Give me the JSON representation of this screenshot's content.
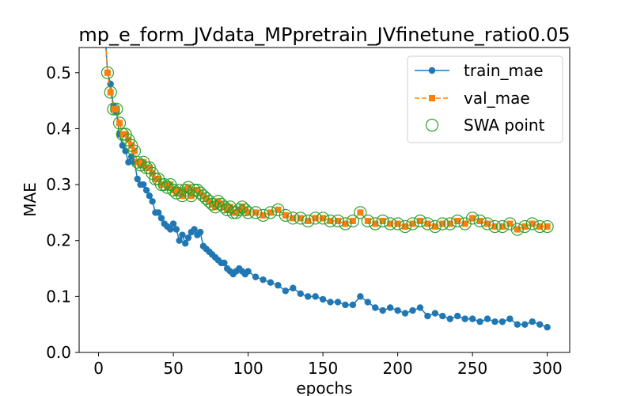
{
  "chart_data": {
    "type": "line",
    "title": "mp_e_form_JVdata_MPpretrain_JVfinetune_ratio0.05",
    "xlabel": "epochs",
    "ylabel": "MAE",
    "xlim": [
      -13,
      315
    ],
    "ylim": [
      0.0,
      0.545
    ],
    "xticks": [
      0,
      50,
      100,
      150,
      200,
      250,
      300
    ],
    "xtick_labels": [
      "0",
      "50",
      "100",
      "150",
      "200",
      "250",
      "300"
    ],
    "yticks": [
      0.0,
      0.1,
      0.2,
      0.3,
      0.4,
      0.5
    ],
    "ytick_labels": [
      "0.0",
      "0.1",
      "0.2",
      "0.3",
      "0.4",
      "0.5"
    ],
    "grid": false,
    "legend_position": "top-right",
    "series": [
      {
        "name": "train_mae",
        "color": "#1f77b4",
        "marker": "circle",
        "linestyle": "solid",
        "x": [
          6,
          8,
          10,
          12,
          14,
          16,
          18,
          20,
          22,
          24,
          26,
          28,
          30,
          32,
          34,
          36,
          38,
          40,
          42,
          44,
          46,
          48,
          50,
          52,
          54,
          56,
          58,
          60,
          62,
          64,
          66,
          68,
          70,
          72,
          74,
          76,
          78,
          80,
          82,
          84,
          86,
          88,
          90,
          92,
          94,
          96,
          98,
          100,
          105,
          110,
          115,
          120,
          125,
          130,
          135,
          140,
          145,
          150,
          155,
          160,
          165,
          170,
          175,
          180,
          185,
          190,
          195,
          200,
          205,
          210,
          215,
          220,
          225,
          230,
          235,
          240,
          245,
          250,
          255,
          260,
          265,
          270,
          275,
          280,
          285,
          290,
          295,
          300
        ],
        "y": [
          0.5,
          0.48,
          0.44,
          0.43,
          0.39,
          0.37,
          0.36,
          0.34,
          0.35,
          0.34,
          0.31,
          0.3,
          0.3,
          0.29,
          0.28,
          0.27,
          0.25,
          0.25,
          0.24,
          0.23,
          0.225,
          0.22,
          0.23,
          0.22,
          0.2,
          0.21,
          0.195,
          0.205,
          0.215,
          0.22,
          0.21,
          0.215,
          0.19,
          0.185,
          0.18,
          0.175,
          0.17,
          0.165,
          0.16,
          0.16,
          0.15,
          0.145,
          0.14,
          0.145,
          0.15,
          0.145,
          0.14,
          0.145,
          0.135,
          0.13,
          0.125,
          0.12,
          0.11,
          0.115,
          0.105,
          0.1,
          0.1,
          0.095,
          0.09,
          0.09,
          0.085,
          0.085,
          0.1,
          0.09,
          0.08,
          0.075,
          0.08,
          0.075,
          0.07,
          0.075,
          0.08,
          0.065,
          0.07,
          0.065,
          0.06,
          0.065,
          0.06,
          0.06,
          0.055,
          0.06,
          0.055,
          0.055,
          0.06,
          0.05,
          0.05,
          0.055,
          0.05,
          0.045
        ]
      },
      {
        "name": "val_mae",
        "color": "#ff7f0e",
        "marker": "square",
        "linestyle": "dashed",
        "x": [
          6,
          8,
          10,
          12,
          14,
          16,
          18,
          20,
          22,
          24,
          26,
          28,
          30,
          32,
          34,
          36,
          38,
          40,
          42,
          44,
          46,
          48,
          50,
          52,
          54,
          56,
          58,
          60,
          62,
          64,
          66,
          68,
          70,
          72,
          74,
          76,
          78,
          80,
          82,
          84,
          86,
          88,
          90,
          92,
          94,
          96,
          98,
          100,
          105,
          110,
          115,
          120,
          125,
          130,
          135,
          140,
          145,
          150,
          155,
          160,
          165,
          170,
          175,
          180,
          185,
          190,
          195,
          200,
          205,
          210,
          215,
          220,
          225,
          230,
          235,
          240,
          245,
          250,
          255,
          260,
          265,
          270,
          275,
          280,
          285,
          290,
          295,
          300
        ],
        "y": [
          0.5,
          0.465,
          0.435,
          0.435,
          0.41,
          0.39,
          0.39,
          0.38,
          0.37,
          0.36,
          0.34,
          0.335,
          0.34,
          0.33,
          0.33,
          0.32,
          0.31,
          0.31,
          0.3,
          0.3,
          0.295,
          0.3,
          0.29,
          0.285,
          0.29,
          0.28,
          0.29,
          0.295,
          0.28,
          0.29,
          0.29,
          0.285,
          0.28,
          0.275,
          0.27,
          0.265,
          0.26,
          0.27,
          0.265,
          0.26,
          0.255,
          0.26,
          0.25,
          0.25,
          0.255,
          0.26,
          0.255,
          0.25,
          0.25,
          0.245,
          0.25,
          0.255,
          0.245,
          0.24,
          0.24,
          0.235,
          0.24,
          0.24,
          0.235,
          0.235,
          0.23,
          0.235,
          0.25,
          0.235,
          0.23,
          0.235,
          0.23,
          0.23,
          0.225,
          0.23,
          0.235,
          0.23,
          0.225,
          0.23,
          0.23,
          0.235,
          0.23,
          0.24,
          0.235,
          0.23,
          0.225,
          0.225,
          0.23,
          0.22,
          0.225,
          0.23,
          0.225,
          0.225
        ]
      },
      {
        "name": "SWA point",
        "color": "#2ca02c",
        "marker": "hollow-circle",
        "linestyle": "none",
        "source": "val_mae"
      }
    ]
  }
}
